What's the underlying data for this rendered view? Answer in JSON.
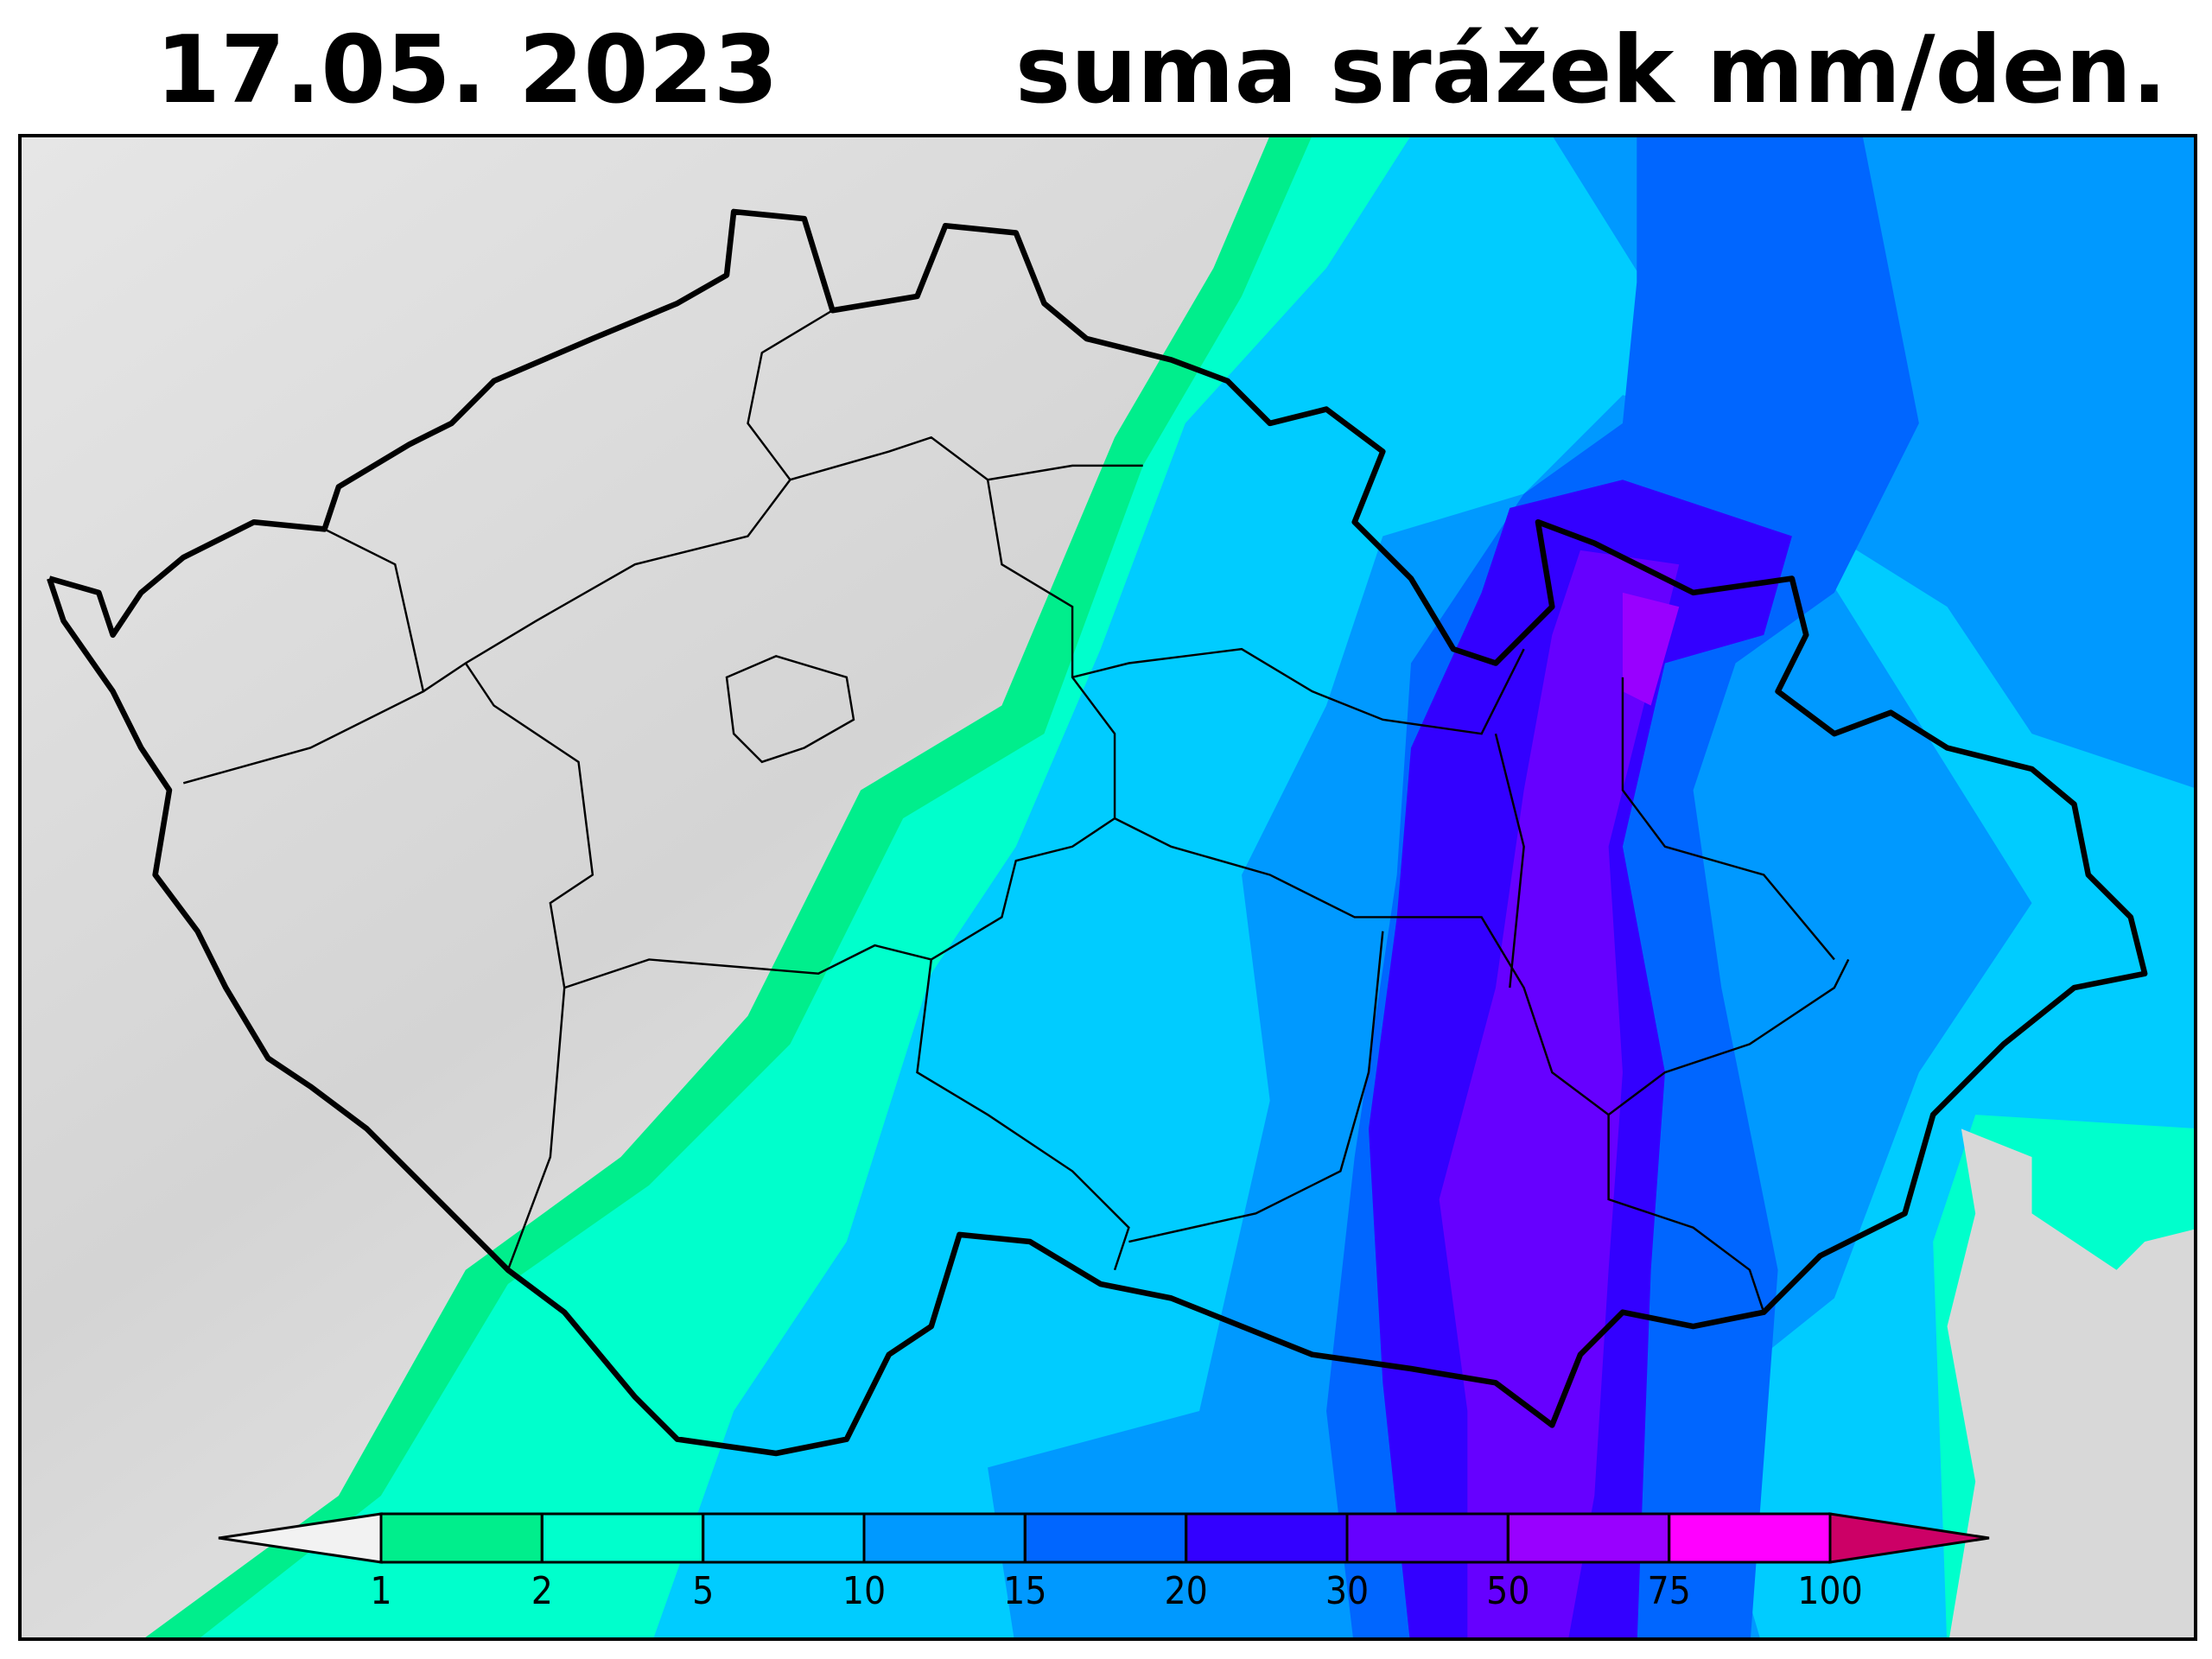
{
  "header": {
    "date": "17.05.  2023",
    "title": "suma srážek mm/den."
  },
  "legend": {
    "ticks": [
      1,
      2,
      5,
      10,
      15,
      20,
      30,
      50,
      75,
      100
    ],
    "colors": [
      "#f2f2f2",
      "#00ee8c",
      "#00ffcc",
      "#00ccff",
      "#0099ff",
      "#0066ff",
      "#3300ff",
      "#6600ff",
      "#9900ff",
      "#ff00ff",
      "#cc0066"
    ]
  }
}
